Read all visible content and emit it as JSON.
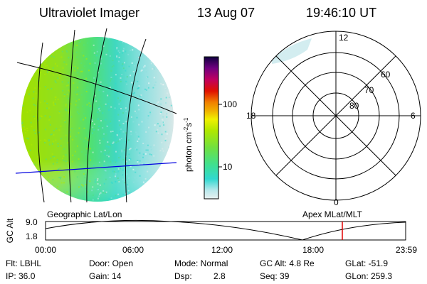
{
  "header": {
    "instrument": "Ultraviolet Imager",
    "date": "13 Aug 07",
    "time": "19:46:10 UT"
  },
  "panels": {
    "left_caption": "Geographic Lat/Lon",
    "right_caption": "Apex MLat/MLT"
  },
  "colorbar": {
    "label": "photon cm^-2 s^-1",
    "label_main": "photon cm",
    "label_sup1": "-2",
    "label_s": "s",
    "label_sup2": "-1",
    "ticks": [
      "100",
      "10"
    ],
    "scale": "log",
    "colors": [
      "#e0ecec",
      "#b8e8ec",
      "#30d8d0",
      "#50e080",
      "#a0e000",
      "#d8f000",
      "#f0c000",
      "#f08000",
      "#e00000",
      "#c00060",
      "#800080",
      "#000060"
    ]
  },
  "polar": {
    "mlt_labels": {
      "top": "12",
      "bottom": "0",
      "left": "18",
      "right": "6"
    },
    "lat_labels": [
      "60",
      "70",
      "80"
    ]
  },
  "altitude_plot": {
    "ylabel": "GC Alt",
    "yticks": [
      "9.0",
      "1.8"
    ],
    "xticks": [
      "00:00",
      "06:00",
      "12:00",
      "18:00",
      "23:59"
    ],
    "current_time_marker": "19:46",
    "marker_color": "#e00000"
  },
  "info": {
    "flt": "Flt: LBHL",
    "ip": "IP: 36.0",
    "door": "Door: Open",
    "gain": "Gain: 14",
    "mode": "Mode: Normal",
    "dsp_label": "Dsp:",
    "dsp_value": "2.8",
    "gc_alt": "GC Alt: 4.8 Re",
    "seq": "Seq: 39",
    "glat": "GLat: -51.9",
    "glon": "GLon: 259.3"
  }
}
